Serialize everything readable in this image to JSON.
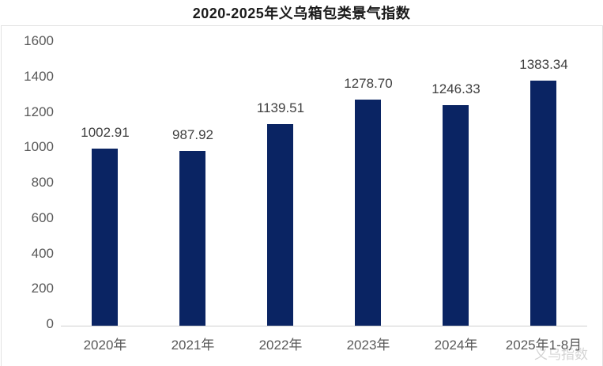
{
  "title": "2020-2025年义乌箱包类景气指数",
  "watermark": "义乌指数",
  "colors": {
    "bar": "#0a2463",
    "title_text": "#1a1a1a",
    "value_label_text": "#3f3f3f",
    "axis_label_text": "#595959",
    "axis_line": "#d0d0d0",
    "panel_border": "#e2e2e2",
    "watermark_text": "#d4d4d4"
  },
  "chart_data": {
    "type": "bar",
    "title": "2020-2025年义乌箱包类景气指数",
    "categories": [
      "2020年",
      "2021年",
      "2022年",
      "2023年",
      "2024年",
      "2025年1-8月"
    ],
    "values": [
      1002.91,
      987.92,
      1139.51,
      1278.7,
      1246.33,
      1383.34
    ],
    "value_labels": [
      "1002.91",
      "987.92",
      "1139.51",
      "1278.70",
      "1246.33",
      "1383.34"
    ],
    "xlabel": "",
    "ylabel": "",
    "ylim": [
      0,
      1600
    ],
    "yticks": [
      0,
      200,
      400,
      600,
      800,
      1000,
      1200,
      1400,
      1600
    ],
    "grid": false,
    "legend": false,
    "bar_color": "#0a2463"
  }
}
